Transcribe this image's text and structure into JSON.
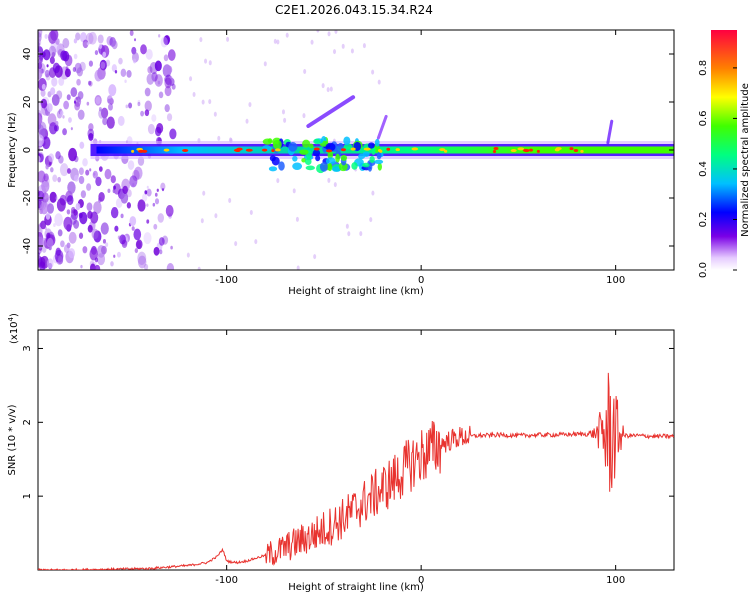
{
  "title": "C2E1.2026.043.15.34.R24",
  "chart_data": [
    {
      "type": "heatmap",
      "name": "spectrogram",
      "xlabel": "Height of straight line (km)",
      "ylabel": "Frequency (Hz)",
      "xlim": [
        -197,
        130
      ],
      "ylim": [
        -50,
        50
      ],
      "xticks": [
        -100,
        0,
        100
      ],
      "yticks": [
        -40,
        -20,
        0,
        20,
        40
      ],
      "colorbar": {
        "label": "Normalized spectral amplitude",
        "range": [
          0,
          0.95
        ],
        "ticks": [
          0.0,
          0.2,
          0.4,
          0.6,
          0.8
        ]
      },
      "ridge": {
        "description": "strong spectral line near 0 Hz",
        "start_x": -170,
        "end_x": 130,
        "center_frequency": 0
      }
    },
    {
      "type": "line",
      "name": "snr",
      "xlabel": "Height of straight line (km)",
      "ylabel": "SNR (10 * v/v)",
      "scale_label": "(x10",
      "scale_exp": "4",
      "scale_close": ")",
      "xlim": [
        -197,
        130
      ],
      "ylim": [
        0,
        3.25
      ],
      "xticks": [
        -100,
        0,
        100
      ],
      "yticks": [
        1,
        2,
        3
      ],
      "color": "#e8332f",
      "x": [
        -197,
        -180,
        -160,
        -140,
        -130,
        -120,
        -110,
        -105,
        -102,
        -100,
        -95,
        -90,
        -85,
        -80,
        -75,
        -70,
        -65,
        -60,
        -55,
        -50,
        -45,
        -40,
        -35,
        -30,
        -25,
        -20,
        -15,
        -10,
        -5,
        0,
        5,
        10,
        15,
        20,
        25,
        30,
        40,
        50,
        60,
        70,
        80,
        85,
        90,
        95,
        98,
        100,
        102,
        105,
        110,
        120,
        130
      ],
      "y": [
        0.0,
        0.0,
        0.01,
        0.02,
        0.04,
        0.06,
        0.1,
        0.18,
        0.28,
        0.12,
        0.1,
        0.12,
        0.16,
        0.2,
        0.24,
        0.3,
        0.36,
        0.42,
        0.48,
        0.55,
        0.62,
        0.7,
        0.8,
        0.9,
        1.0,
        1.1,
        1.2,
        1.32,
        1.45,
        1.55,
        1.62,
        1.7,
        1.76,
        1.8,
        1.81,
        1.82,
        1.83,
        1.82,
        1.83,
        1.83,
        1.84,
        1.84,
        1.85,
        1.85,
        1.86,
        1.85,
        1.83,
        1.82,
        1.82,
        1.81,
        1.81
      ]
    }
  ]
}
